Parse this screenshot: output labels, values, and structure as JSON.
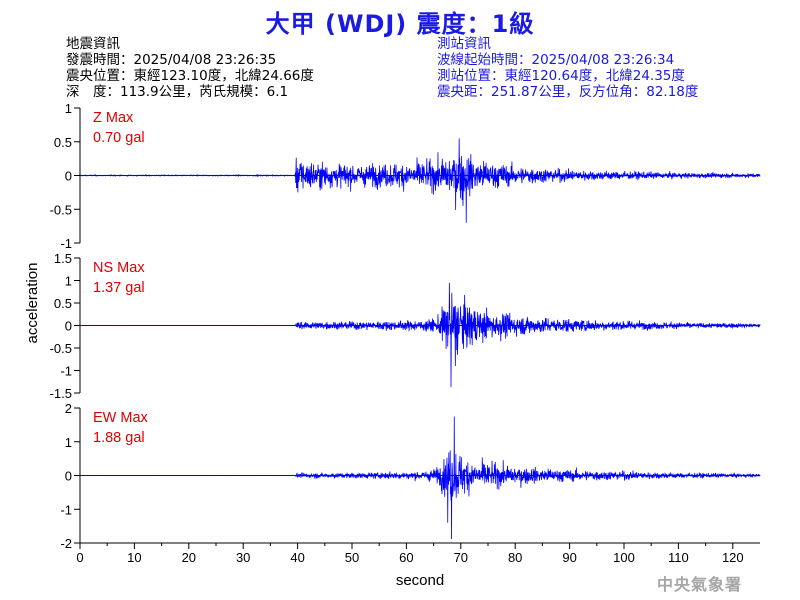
{
  "title": "大甲 (WDJ) 震度：1級",
  "quake_info": {
    "heading": "地震資訊",
    "time": "發震時間：2025/04/08 23:26:35",
    "location": "震央位置：東經123.10度，北緯24.66度",
    "depth_magnitude": "深　度：113.9公里，芮氏規模：6.1"
  },
  "station_info": {
    "heading": "測站資訊",
    "wave_start": "波線起始時間：2025/04/08 23:26:34",
    "location": "測站位置：東經120.64度，北緯24.35度",
    "distance_azimuth": "震央距：251.87公里，反方位角：82.18度"
  },
  "watermark": "中央氣象署",
  "colors": {
    "title": "#1a1ae0",
    "trace": "#0000ff",
    "peak_label": "#e00000",
    "axes": "#000000",
    "watermark": "#a6a6a6"
  },
  "chart_data": {
    "type": "line",
    "xlabel": "second",
    "ylabel": "acceleration",
    "xlim": [
      0,
      125
    ],
    "xticks": [
      "0",
      "10",
      "20",
      "30",
      "40",
      "50",
      "60",
      "70",
      "80",
      "90",
      "100",
      "110",
      "120"
    ],
    "panels": [
      {
        "component": "Z",
        "peak_label": "Z Max",
        "peak_value": "0.70 gal",
        "ylim": [
          -1,
          1
        ],
        "yticks": [
          "1",
          "0.5",
          "0",
          "-0.5",
          "-1"
        ],
        "envelope": [
          [
            0,
            0.01
          ],
          [
            39.5,
            0.01
          ],
          [
            39.8,
            0.38
          ],
          [
            42,
            0.32
          ],
          [
            45,
            0.26
          ],
          [
            50,
            0.24
          ],
          [
            55,
            0.24
          ],
          [
            60,
            0.28
          ],
          [
            64,
            0.3
          ],
          [
            66,
            0.35
          ],
          [
            68,
            0.45
          ],
          [
            69.5,
            0.55
          ],
          [
            71,
            0.45
          ],
          [
            74,
            0.32
          ],
          [
            80,
            0.2
          ],
          [
            90,
            0.12
          ],
          [
            100,
            0.09
          ],
          [
            110,
            0.06
          ],
          [
            125,
            0.04
          ]
        ],
        "spikes": [
          {
            "t": 71.0,
            "v": -0.7
          },
          {
            "t": 69.7,
            "v": 0.55
          },
          {
            "t": 70.4,
            "v": -0.45
          }
        ]
      },
      {
        "component": "NS",
        "peak_label": "NS Max",
        "peak_value": "1.37 gal",
        "ylim": [
          -1.5,
          1.5
        ],
        "yticks": [
          "1.5",
          "1",
          "0.5",
          "0",
          "-0.5",
          "-1",
          "-1.5"
        ],
        "envelope": [
          [
            0,
            0.004
          ],
          [
            39.5,
            0.004
          ],
          [
            39.8,
            0.12
          ],
          [
            45,
            0.12
          ],
          [
            55,
            0.14
          ],
          [
            63,
            0.16
          ],
          [
            66,
            0.3
          ],
          [
            67.5,
            0.9
          ],
          [
            68.5,
            1.0
          ],
          [
            70,
            0.85
          ],
          [
            73,
            0.55
          ],
          [
            78,
            0.38
          ],
          [
            85,
            0.25
          ],
          [
            95,
            0.18
          ],
          [
            110,
            0.1
          ],
          [
            125,
            0.06
          ]
        ],
        "spikes": [
          {
            "t": 68.2,
            "v": -1.37
          },
          {
            "t": 67.9,
            "v": 0.95
          },
          {
            "t": 69.0,
            "v": -0.9
          }
        ]
      },
      {
        "component": "EW",
        "peak_label": "EW Max",
        "peak_value": "1.88 gal",
        "ylim": [
          -2,
          2
        ],
        "yticks": [
          "2",
          "1",
          "0",
          "-1",
          "-2"
        ],
        "envelope": [
          [
            0,
            0.005
          ],
          [
            39.5,
            0.005
          ],
          [
            39.8,
            0.1
          ],
          [
            45,
            0.11
          ],
          [
            55,
            0.13
          ],
          [
            63,
            0.18
          ],
          [
            66,
            0.35
          ],
          [
            67.5,
            1.1
          ],
          [
            68.5,
            1.2
          ],
          [
            70,
            0.9
          ],
          [
            72,
            0.65
          ],
          [
            76,
            0.5
          ],
          [
            82,
            0.35
          ],
          [
            90,
            0.25
          ],
          [
            100,
            0.18
          ],
          [
            110,
            0.12
          ],
          [
            125,
            0.07
          ]
        ],
        "spikes": [
          {
            "t": 68.3,
            "v": -1.88
          },
          {
            "t": 68.8,
            "v": 1.75
          },
          {
            "t": 67.6,
            "v": -1.4
          }
        ]
      }
    ]
  }
}
